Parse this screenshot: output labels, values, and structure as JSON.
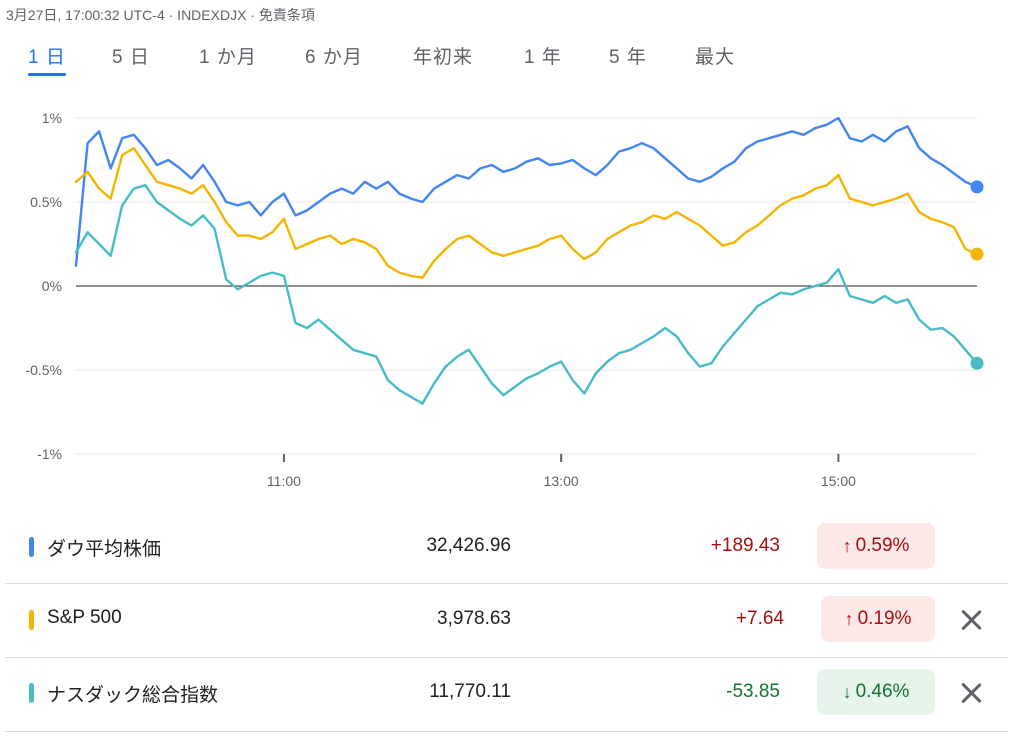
{
  "header": {
    "meta": "3月27日, 17:00:32 UTC-4 · INDEXDJX · 免責条項"
  },
  "range_tabs": [
    "1 日",
    "5 日",
    "1 か月",
    "6 か月",
    "年初来",
    "1 年",
    "5 年",
    "最大"
  ],
  "active_range": "1 日",
  "colors": {
    "dow": "#4285f4",
    "sp500": "#f4b400",
    "nasdaq": "#46bdc6",
    "up_text": "#a50e0e",
    "up_bg": "#fce8e6",
    "down_text": "#137333",
    "down_bg": "#e6f4ea",
    "baseline": "#202124",
    "grid": "#e8eaed"
  },
  "chart_data": {
    "type": "line",
    "y_unit": "%",
    "ylim": [
      -1,
      1
    ],
    "y_ticks": [
      "1%",
      "0.5%",
      "0%",
      "-0.5%",
      "-1%"
    ],
    "y_tick_values": [
      1,
      0.5,
      0,
      -0.5,
      -1
    ],
    "x_range": [
      "09:30",
      "16:00"
    ],
    "x_ticks": [
      "11:00",
      "13:00",
      "15:00"
    ],
    "grid": "horizontal",
    "series": [
      {
        "name": "ダウ平均株価",
        "color_key": "dow",
        "points": [
          [
            "09:30",
            0.12
          ],
          [
            "09:35",
            0.85
          ],
          [
            "09:40",
            0.92
          ],
          [
            "09:45",
            0.7
          ],
          [
            "09:50",
            0.88
          ],
          [
            "09:55",
            0.9
          ],
          [
            "10:00",
            0.82
          ],
          [
            "10:05",
            0.72
          ],
          [
            "10:10",
            0.75
          ],
          [
            "10:15",
            0.7
          ],
          [
            "10:20",
            0.64
          ],
          [
            "10:25",
            0.72
          ],
          [
            "10:30",
            0.62
          ],
          [
            "10:35",
            0.5
          ],
          [
            "10:40",
            0.48
          ],
          [
            "10:45",
            0.5
          ],
          [
            "10:50",
            0.42
          ],
          [
            "10:55",
            0.5
          ],
          [
            "11:00",
            0.55
          ],
          [
            "11:05",
            0.42
          ],
          [
            "11:10",
            0.45
          ],
          [
            "11:15",
            0.5
          ],
          [
            "11:20",
            0.55
          ],
          [
            "11:25",
            0.58
          ],
          [
            "11:30",
            0.55
          ],
          [
            "11:35",
            0.62
          ],
          [
            "11:40",
            0.58
          ],
          [
            "11:45",
            0.62
          ],
          [
            "11:50",
            0.55
          ],
          [
            "11:55",
            0.52
          ],
          [
            "12:00",
            0.5
          ],
          [
            "12:05",
            0.58
          ],
          [
            "12:10",
            0.62
          ],
          [
            "12:15",
            0.66
          ],
          [
            "12:20",
            0.64
          ],
          [
            "12:25",
            0.7
          ],
          [
            "12:30",
            0.72
          ],
          [
            "12:35",
            0.68
          ],
          [
            "12:40",
            0.7
          ],
          [
            "12:45",
            0.74
          ],
          [
            "12:50",
            0.76
          ],
          [
            "12:55",
            0.72
          ],
          [
            "13:00",
            0.73
          ],
          [
            "13:05",
            0.75
          ],
          [
            "13:10",
            0.7
          ],
          [
            "13:15",
            0.66
          ],
          [
            "13:20",
            0.72
          ],
          [
            "13:25",
            0.8
          ],
          [
            "13:30",
            0.82
          ],
          [
            "13:35",
            0.85
          ],
          [
            "13:40",
            0.82
          ],
          [
            "13:45",
            0.76
          ],
          [
            "13:50",
            0.7
          ],
          [
            "13:55",
            0.64
          ],
          [
            "14:00",
            0.62
          ],
          [
            "14:05",
            0.65
          ],
          [
            "14:10",
            0.7
          ],
          [
            "14:15",
            0.74
          ],
          [
            "14:20",
            0.82
          ],
          [
            "14:25",
            0.86
          ],
          [
            "14:30",
            0.88
          ],
          [
            "14:35",
            0.9
          ],
          [
            "14:40",
            0.92
          ],
          [
            "14:45",
            0.9
          ],
          [
            "14:50",
            0.94
          ],
          [
            "14:55",
            0.96
          ],
          [
            "15:00",
            1.0
          ],
          [
            "15:05",
            0.88
          ],
          [
            "15:10",
            0.86
          ],
          [
            "15:15",
            0.9
          ],
          [
            "15:20",
            0.86
          ],
          [
            "15:25",
            0.92
          ],
          [
            "15:30",
            0.95
          ],
          [
            "15:35",
            0.82
          ],
          [
            "15:40",
            0.76
          ],
          [
            "15:45",
            0.72
          ],
          [
            "15:50",
            0.67
          ],
          [
            "15:55",
            0.62
          ],
          [
            "16:00",
            0.59
          ]
        ]
      },
      {
        "name": "S&P 500",
        "color_key": "sp500",
        "points": [
          [
            "09:30",
            0.62
          ],
          [
            "09:35",
            0.68
          ],
          [
            "09:40",
            0.58
          ],
          [
            "09:45",
            0.52
          ],
          [
            "09:50",
            0.78
          ],
          [
            "09:55",
            0.82
          ],
          [
            "10:00",
            0.72
          ],
          [
            "10:05",
            0.62
          ],
          [
            "10:10",
            0.6
          ],
          [
            "10:15",
            0.58
          ],
          [
            "10:20",
            0.55
          ],
          [
            "10:25",
            0.6
          ],
          [
            "10:30",
            0.5
          ],
          [
            "10:35",
            0.38
          ],
          [
            "10:40",
            0.3
          ],
          [
            "10:45",
            0.3
          ],
          [
            "10:50",
            0.28
          ],
          [
            "10:55",
            0.32
          ],
          [
            "11:00",
            0.4
          ],
          [
            "11:05",
            0.22
          ],
          [
            "11:10",
            0.25
          ],
          [
            "11:15",
            0.28
          ],
          [
            "11:20",
            0.3
          ],
          [
            "11:25",
            0.25
          ],
          [
            "11:30",
            0.28
          ],
          [
            "11:35",
            0.26
          ],
          [
            "11:40",
            0.22
          ],
          [
            "11:45",
            0.12
          ],
          [
            "11:50",
            0.08
          ],
          [
            "11:55",
            0.06
          ],
          [
            "12:00",
            0.05
          ],
          [
            "12:05",
            0.15
          ],
          [
            "12:10",
            0.22
          ],
          [
            "12:15",
            0.28
          ],
          [
            "12:20",
            0.3
          ],
          [
            "12:25",
            0.25
          ],
          [
            "12:30",
            0.2
          ],
          [
            "12:35",
            0.18
          ],
          [
            "12:40",
            0.2
          ],
          [
            "12:45",
            0.22
          ],
          [
            "12:50",
            0.24
          ],
          [
            "12:55",
            0.28
          ],
          [
            "13:00",
            0.3
          ],
          [
            "13:05",
            0.22
          ],
          [
            "13:10",
            0.16
          ],
          [
            "13:15",
            0.2
          ],
          [
            "13:20",
            0.28
          ],
          [
            "13:25",
            0.32
          ],
          [
            "13:30",
            0.36
          ],
          [
            "13:35",
            0.38
          ],
          [
            "13:40",
            0.42
          ],
          [
            "13:45",
            0.4
          ],
          [
            "13:50",
            0.44
          ],
          [
            "13:55",
            0.4
          ],
          [
            "14:00",
            0.36
          ],
          [
            "14:05",
            0.3
          ],
          [
            "14:10",
            0.24
          ],
          [
            "14:15",
            0.26
          ],
          [
            "14:20",
            0.32
          ],
          [
            "14:25",
            0.36
          ],
          [
            "14:30",
            0.42
          ],
          [
            "14:35",
            0.48
          ],
          [
            "14:40",
            0.52
          ],
          [
            "14:45",
            0.54
          ],
          [
            "14:50",
            0.58
          ],
          [
            "14:55",
            0.6
          ],
          [
            "15:00",
            0.66
          ],
          [
            "15:05",
            0.52
          ],
          [
            "15:10",
            0.5
          ],
          [
            "15:15",
            0.48
          ],
          [
            "15:20",
            0.5
          ],
          [
            "15:25",
            0.52
          ],
          [
            "15:30",
            0.55
          ],
          [
            "15:35",
            0.44
          ],
          [
            "15:40",
            0.4
          ],
          [
            "15:45",
            0.38
          ],
          [
            "15:50",
            0.35
          ],
          [
            "15:55",
            0.22
          ],
          [
            "16:00",
            0.19
          ]
        ]
      },
      {
        "name": "ナスダック総合指数",
        "color_key": "nasdaq",
        "points": [
          [
            "09:30",
            0.2
          ],
          [
            "09:35",
            0.32
          ],
          [
            "09:40",
            0.25
          ],
          [
            "09:45",
            0.18
          ],
          [
            "09:50",
            0.48
          ],
          [
            "09:55",
            0.58
          ],
          [
            "10:00",
            0.6
          ],
          [
            "10:05",
            0.5
          ],
          [
            "10:10",
            0.45
          ],
          [
            "10:15",
            0.4
          ],
          [
            "10:20",
            0.36
          ],
          [
            "10:25",
            0.42
          ],
          [
            "10:30",
            0.34
          ],
          [
            "10:35",
            0.04
          ],
          [
            "10:40",
            -0.02
          ],
          [
            "10:45",
            0.02
          ],
          [
            "10:50",
            0.06
          ],
          [
            "10:55",
            0.08
          ],
          [
            "11:00",
            0.06
          ],
          [
            "11:05",
            -0.22
          ],
          [
            "11:10",
            -0.25
          ],
          [
            "11:15",
            -0.2
          ],
          [
            "11:20",
            -0.26
          ],
          [
            "11:25",
            -0.32
          ],
          [
            "11:30",
            -0.38
          ],
          [
            "11:35",
            -0.4
          ],
          [
            "11:40",
            -0.42
          ],
          [
            "11:45",
            -0.56
          ],
          [
            "11:50",
            -0.62
          ],
          [
            "11:55",
            -0.66
          ],
          [
            "12:00",
            -0.7
          ],
          [
            "12:05",
            -0.58
          ],
          [
            "12:10",
            -0.48
          ],
          [
            "12:15",
            -0.42
          ],
          [
            "12:20",
            -0.38
          ],
          [
            "12:25",
            -0.48
          ],
          [
            "12:30",
            -0.58
          ],
          [
            "12:35",
            -0.65
          ],
          [
            "12:40",
            -0.6
          ],
          [
            "12:45",
            -0.55
          ],
          [
            "12:50",
            -0.52
          ],
          [
            "12:55",
            -0.48
          ],
          [
            "13:00",
            -0.45
          ],
          [
            "13:05",
            -0.56
          ],
          [
            "13:10",
            -0.64
          ],
          [
            "13:15",
            -0.52
          ],
          [
            "13:20",
            -0.45
          ],
          [
            "13:25",
            -0.4
          ],
          [
            "13:30",
            -0.38
          ],
          [
            "13:35",
            -0.34
          ],
          [
            "13:40",
            -0.3
          ],
          [
            "13:45",
            -0.25
          ],
          [
            "13:50",
            -0.3
          ],
          [
            "13:55",
            -0.4
          ],
          [
            "14:00",
            -0.48
          ],
          [
            "14:05",
            -0.46
          ],
          [
            "14:10",
            -0.36
          ],
          [
            "14:15",
            -0.28
          ],
          [
            "14:20",
            -0.2
          ],
          [
            "14:25",
            -0.12
          ],
          [
            "14:30",
            -0.08
          ],
          [
            "14:35",
            -0.04
          ],
          [
            "14:40",
            -0.05
          ],
          [
            "14:45",
            -0.02
          ],
          [
            "14:50",
            0.0
          ],
          [
            "14:55",
            0.02
          ],
          [
            "15:00",
            0.1
          ],
          [
            "15:05",
            -0.06
          ],
          [
            "15:10",
            -0.08
          ],
          [
            "15:15",
            -0.1
          ],
          [
            "15:20",
            -0.06
          ],
          [
            "15:25",
            -0.1
          ],
          [
            "15:30",
            -0.08
          ],
          [
            "15:35",
            -0.2
          ],
          [
            "15:40",
            -0.26
          ],
          [
            "15:45",
            -0.25
          ],
          [
            "15:50",
            -0.3
          ],
          [
            "15:55",
            -0.38
          ],
          [
            "16:00",
            -0.46
          ]
        ]
      }
    ]
  },
  "legend": [
    {
      "name": "ダウ平均株価",
      "color_key": "dow",
      "price": "32,426.96",
      "change": "+189.43",
      "pct": "0.59%",
      "direction": "up",
      "removable": false
    },
    {
      "name": "S&P 500",
      "color_key": "sp500",
      "price": "3,978.63",
      "change": "+7.64",
      "pct": "0.19%",
      "direction": "up",
      "removable": true
    },
    {
      "name": "ナスダック総合指数",
      "color_key": "nasdaq",
      "price": "11,770.11",
      "change": "-53.85",
      "pct": "0.46%",
      "direction": "down",
      "removable": true
    }
  ]
}
